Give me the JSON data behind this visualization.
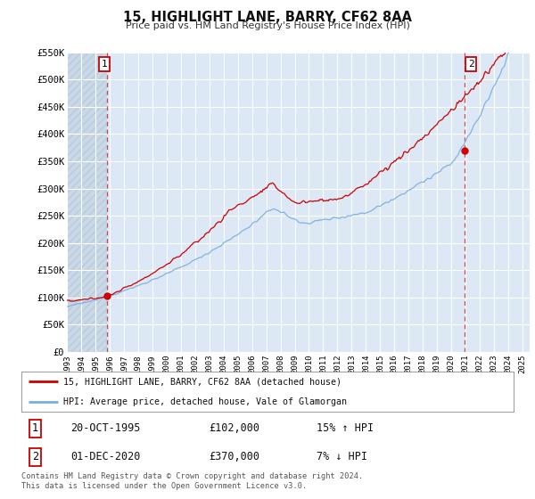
{
  "title": "15, HIGHLIGHT LANE, BARRY, CF62 8AA",
  "subtitle": "Price paid vs. HM Land Registry's House Price Index (HPI)",
  "xmin": 1993.0,
  "xmax": 2025.5,
  "ymin": 0,
  "ymax": 550000,
  "yticks": [
    0,
    50000,
    100000,
    150000,
    200000,
    250000,
    300000,
    350000,
    400000,
    450000,
    500000,
    550000
  ],
  "ytick_labels": [
    "£0",
    "£50K",
    "£100K",
    "£150K",
    "£200K",
    "£250K",
    "£300K",
    "£350K",
    "£400K",
    "£450K",
    "£500K",
    "£550K"
  ],
  "xticks": [
    1993,
    1994,
    1995,
    1996,
    1997,
    1998,
    1999,
    2000,
    2001,
    2002,
    2003,
    2004,
    2005,
    2006,
    2007,
    2008,
    2009,
    2010,
    2011,
    2012,
    2013,
    2014,
    2015,
    2016,
    2017,
    2018,
    2019,
    2020,
    2021,
    2022,
    2023,
    2024,
    2025
  ],
  "line_color_red": "#cc0000",
  "line_color_blue": "#7aaddc",
  "bg_color": "#dce8f5",
  "bg_hatch_color": "#c8d8e8",
  "grid_color": "#ffffff",
  "sale1_x": 1995.8,
  "sale1_y": 102000,
  "sale2_x": 2020.92,
  "sale2_y": 370000,
  "vline1_x": 1995.8,
  "vline2_x": 2020.92,
  "legend_label_red": "15, HIGHLIGHT LANE, BARRY, CF62 8AA (detached house)",
  "legend_label_blue": "HPI: Average price, detached house, Vale of Glamorgan",
  "annotation1_num": "1",
  "annotation2_num": "2",
  "table_row1": [
    "1",
    "20-OCT-1995",
    "£102,000",
    "15% ↑ HPI"
  ],
  "table_row2": [
    "2",
    "01-DEC-2020",
    "£370,000",
    "7% ↓ HPI"
  ],
  "footer": "Contains HM Land Registry data © Crown copyright and database right 2024.\nThis data is licensed under the Open Government Licence v3.0."
}
